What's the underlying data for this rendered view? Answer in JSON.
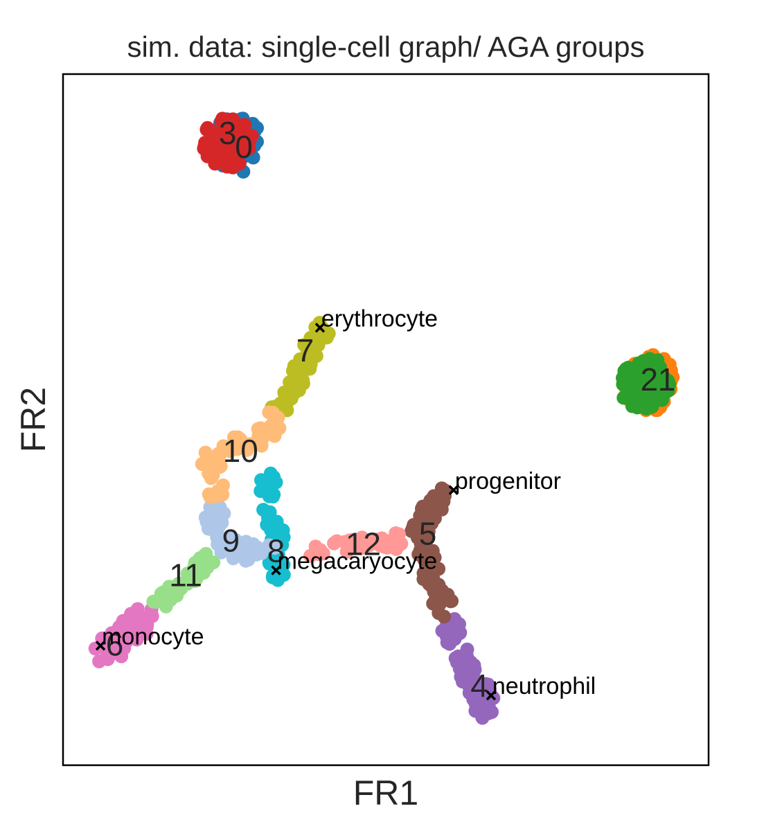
{
  "chart_data": {
    "type": "scatter",
    "title": "sim. data: single-cell graph/ AGA groups",
    "xlabel": "FR1",
    "ylabel": "FR2",
    "xlim": [
      0,
      100
    ],
    "ylim": [
      0,
      100
    ],
    "grid": false,
    "ticks": false,
    "groups": [
      {
        "label": "0",
        "color": "#1f77b4",
        "label_pos": [
          28.0,
          89.5
        ],
        "path": [
          [
            27.0,
            90.3
          ],
          [
            26.8,
            89.6
          ]
        ],
        "radius": 4.0,
        "count": 70
      },
      {
        "label": "1",
        "color": "#ff7f0e",
        "label_pos": [
          93.5,
          55.8
        ],
        "path": [
          [
            90.8,
            55.6
          ],
          [
            91.0,
            54.8
          ]
        ],
        "radius": 4.0,
        "count": 70
      },
      {
        "label": "2",
        "color": "#2ca02c",
        "label_pos": [
          90.8,
          55.8
        ],
        "path": [
          [
            90.2,
            55.6
          ],
          [
            90.0,
            55.0
          ]
        ],
        "radius": 3.9,
        "count": 80
      },
      {
        "label": "3",
        "color": "#d62728",
        "label_pos": [
          25.5,
          91.5
        ],
        "path": [
          [
            25.6,
            90.6
          ],
          [
            25.4,
            90.0
          ]
        ],
        "radius": 3.8,
        "count": 80
      },
      {
        "label": "4",
        "color": "#9467bd",
        "label_pos": [
          64.5,
          11.5
        ],
        "path": [
          [
            60.0,
            21.0
          ],
          [
            62.0,
            15.0
          ],
          [
            65.0,
            10.8
          ],
          [
            65.0,
            7.8
          ]
        ],
        "radius": 1.9,
        "count": 90
      },
      {
        "label": "5",
        "color": "#8c564b",
        "label_pos": [
          56.5,
          33.5
        ],
        "path": [
          [
            59.5,
            40.2
          ],
          [
            56.0,
            36.0
          ],
          [
            55.0,
            33.0
          ],
          [
            57.0,
            27.0
          ],
          [
            59.5,
            22.5
          ]
        ],
        "radius": 1.6,
        "count": 90
      },
      {
        "label": "6",
        "color": "#e377c2",
        "label_pos": [
          8.0,
          17.5
        ],
        "path": [
          [
            13.0,
            21.5
          ],
          [
            9.0,
            18.5
          ],
          [
            6.5,
            16.0
          ]
        ],
        "radius": 2.0,
        "count": 60
      },
      {
        "label": "7",
        "color": "#bcbd22",
        "label_pos": [
          37.5,
          60.0
        ],
        "path": [
          [
            40.2,
            63.2
          ],
          [
            37.5,
            59.0
          ],
          [
            35.5,
            55.0
          ],
          [
            33.5,
            51.5
          ]
        ],
        "radius": 1.6,
        "count": 60
      },
      {
        "label": "8",
        "color": "#17becf",
        "label_pos": [
          33.0,
          31.0
        ],
        "path": [
          [
            31.5,
            41.5
          ],
          [
            32.5,
            37.0
          ],
          [
            33.0,
            32.0
          ],
          [
            33.0,
            26.0
          ]
        ],
        "radius": 1.5,
        "count": 60
      },
      {
        "label": "9",
        "color": "#aec7e8",
        "label_pos": [
          26.0,
          32.5
        ],
        "path": [
          [
            23.5,
            37.0
          ],
          [
            24.0,
            32.5
          ],
          [
            27.5,
            31.0
          ],
          [
            33.0,
            31.5
          ]
        ],
        "radius": 1.6,
        "count": 60
      },
      {
        "label": "10",
        "color": "#ffbb78",
        "label_pos": [
          27.5,
          45.5
        ],
        "path": [
          [
            32.5,
            51.0
          ],
          [
            31.5,
            47.5
          ],
          [
            27.0,
            46.5
          ],
          [
            23.0,
            44.0
          ],
          [
            23.5,
            39.0
          ]
        ],
        "radius": 1.6,
        "count": 60
      },
      {
        "label": "11",
        "color": "#98df8a",
        "label_pos": [
          19.0,
          27.5
        ],
        "path": [
          [
            23.5,
            30.5
          ],
          [
            19.0,
            27.0
          ],
          [
            15.0,
            23.5
          ]
        ],
        "radius": 1.2,
        "count": 50
      },
      {
        "label": "12",
        "color": "#ff9896",
        "label_pos": [
          46.5,
          32.0
        ],
        "path": [
          [
            38.0,
            31.5
          ],
          [
            44.0,
            31.8
          ],
          [
            50.0,
            32.3
          ],
          [
            52.0,
            32.5
          ]
        ],
        "radius": 1.3,
        "count": 50
      }
    ],
    "annotations": [
      {
        "text": "erythrocyte",
        "x": 39.8,
        "y": 63.3
      },
      {
        "text": "progenitor",
        "x": 60.5,
        "y": 39.8
      },
      {
        "text": "megacaryocyte",
        "x": 33.0,
        "y": 28.2
      },
      {
        "text": "monocyte",
        "x": 5.8,
        "y": 17.3
      },
      {
        "text": "neutrophil",
        "x": 66.3,
        "y": 10.1
      }
    ]
  }
}
